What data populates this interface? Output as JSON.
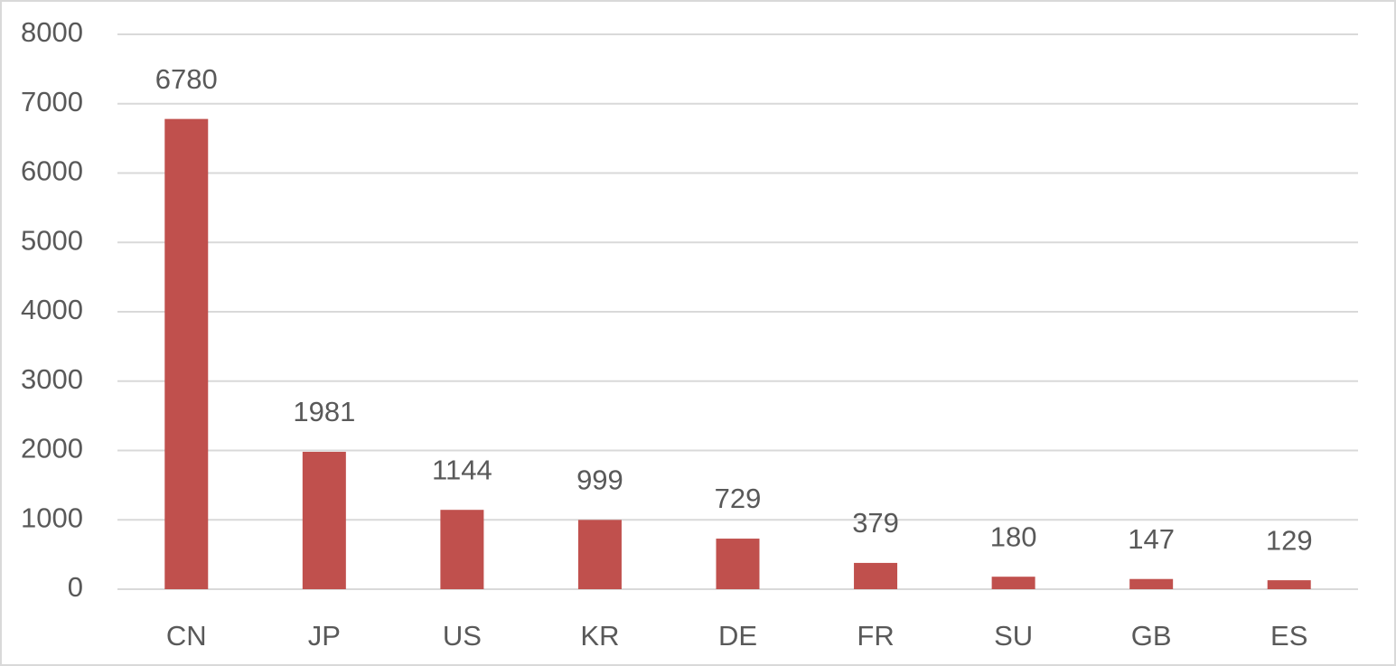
{
  "chart_data": {
    "type": "bar",
    "categories": [
      "CN",
      "JP",
      "US",
      "KR",
      "DE",
      "FR",
      "SU",
      "GB",
      "ES"
    ],
    "values": [
      6780,
      1981,
      1144,
      999,
      729,
      379,
      180,
      147,
      129
    ],
    "color": "#c0504d",
    "ylim": [
      0,
      8000
    ],
    "yticks": [
      0,
      1000,
      2000,
      3000,
      4000,
      5000,
      6000,
      7000,
      8000
    ],
    "grid": true,
    "data_labels": true
  }
}
